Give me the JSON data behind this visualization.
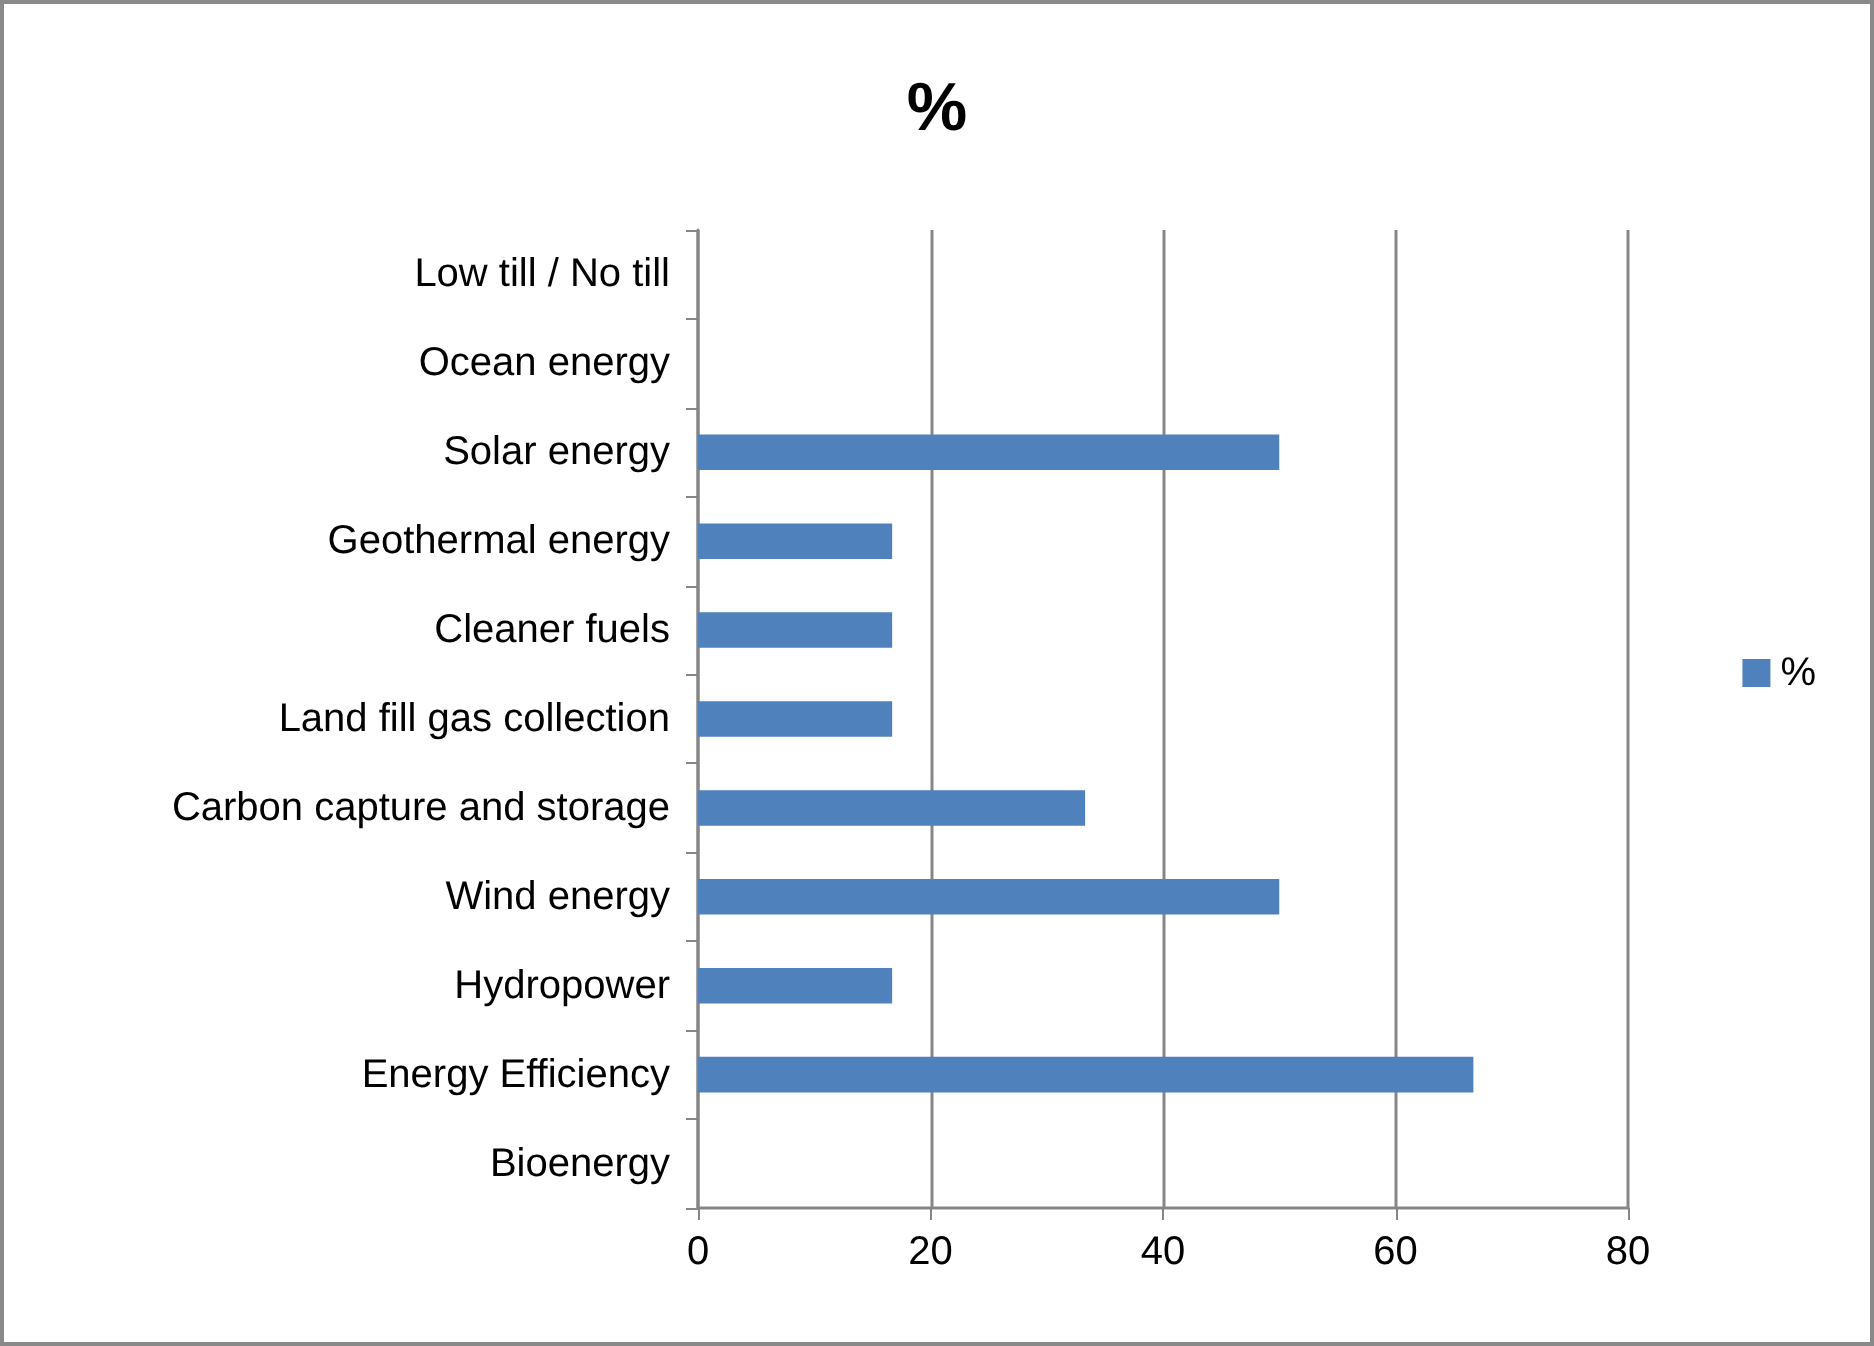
{
  "chart_data": {
    "type": "bar",
    "orientation": "horizontal",
    "title": "%",
    "categories": [
      "Low till / No till",
      "Ocean energy",
      "Solar energy",
      "Geothermal energy",
      "Cleaner fuels",
      "Land fill gas collection",
      "Carbon capture and storage",
      "Wind energy",
      "Hydropower",
      "Energy Efficiency",
      "Bioenergy"
    ],
    "series": [
      {
        "name": "%",
        "color": "#4f81bd",
        "values": [
          0,
          0,
          50,
          16.7,
          16.7,
          16.7,
          33.3,
          50,
          16.7,
          66.7,
          0
        ]
      }
    ],
    "xlim": [
      0,
      80
    ],
    "xticks": [
      0,
      20,
      40,
      60,
      80
    ],
    "grid": "x",
    "legend": "right"
  }
}
